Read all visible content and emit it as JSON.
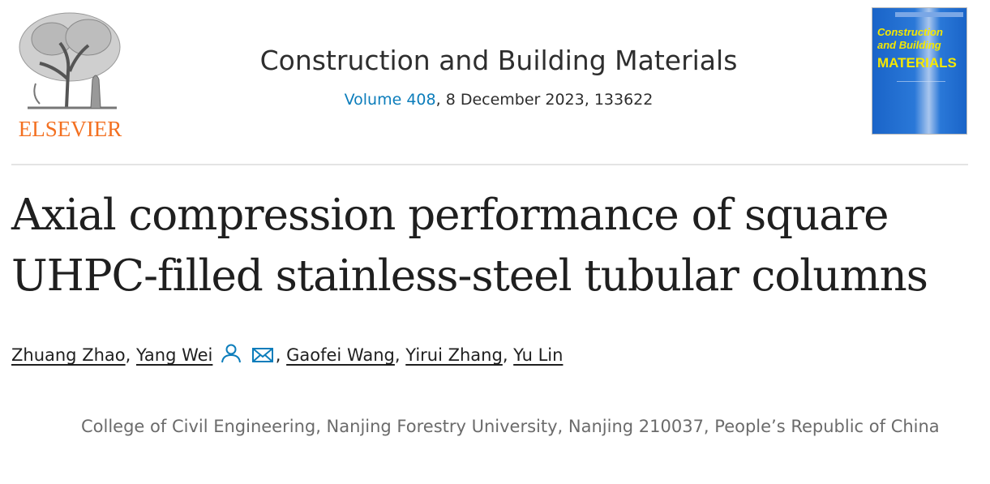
{
  "publisher": {
    "logo_text": "ELSEVIER"
  },
  "journal": {
    "title": "Construction and Building Materials",
    "volume_link": "Volume 408",
    "issue_details": ", 8 December 2023, 133622",
    "cover_text_line1": "Construction",
    "cover_text_line2": "and Building",
    "cover_text_line3": "MATERIALS"
  },
  "article": {
    "title_line1": "Axial compression performance of square",
    "title_line2": "UHPC-filled stainless-steel tubular columns"
  },
  "authors": [
    {
      "name": "Zhuang Zhao"
    },
    {
      "name": "Yang Wei"
    },
    {
      "name": "Gaofei Wang"
    },
    {
      "name": "Yirui Zhang"
    },
    {
      "name": "Yu Lin"
    }
  ],
  "affiliation": "College of Civil Engineering, Nanjing Forestry University, Nanjing 210037, People’s Republic of China",
  "colors": {
    "link": "#0c7dbb",
    "elsevier_orange": "#f37021",
    "cover_blue": "#1a64c8",
    "cover_yellow": "#f5e800"
  }
}
